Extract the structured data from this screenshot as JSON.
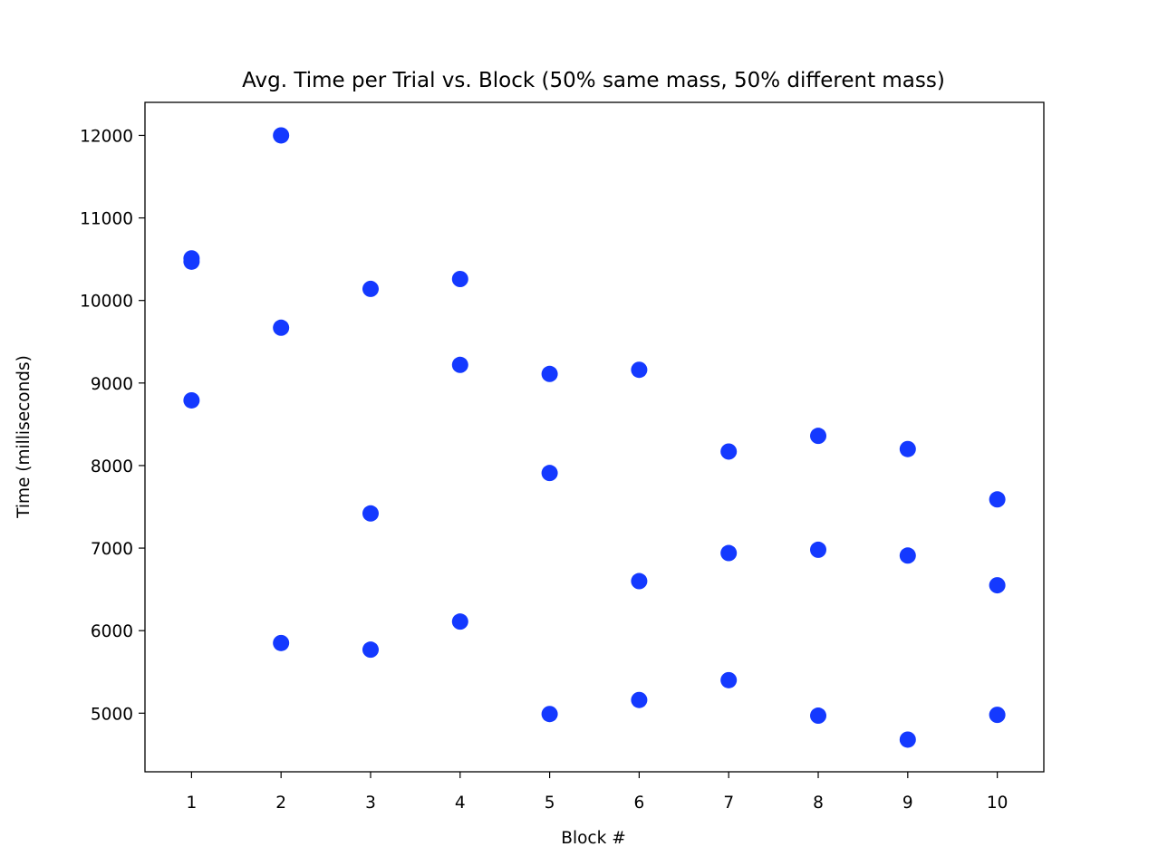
{
  "chart_data": {
    "type": "scatter",
    "title": "Avg. Time per Trial vs. Block (50% same mass, 50% different mass)",
    "xlabel": "Block #",
    "ylabel": "Time (milliseconds)",
    "xlim": [
      0.48,
      10.52
    ],
    "ylim": [
      4290,
      12400
    ],
    "xticks": [
      1,
      2,
      3,
      4,
      5,
      6,
      7,
      8,
      9,
      10
    ],
    "yticks": [
      5000,
      6000,
      7000,
      8000,
      9000,
      10000,
      11000,
      12000
    ],
    "grid": false,
    "marker_color": "#1439ff",
    "series": [
      {
        "points": [
          {
            "x": 1,
            "y": 10510
          },
          {
            "x": 1,
            "y": 10470
          },
          {
            "x": 1,
            "y": 8790
          },
          {
            "x": 2,
            "y": 12000
          },
          {
            "x": 2,
            "y": 9670
          },
          {
            "x": 2,
            "y": 5850
          },
          {
            "x": 3,
            "y": 10140
          },
          {
            "x": 3,
            "y": 7420
          },
          {
            "x": 3,
            "y": 5770
          },
          {
            "x": 4,
            "y": 10260
          },
          {
            "x": 4,
            "y": 9220
          },
          {
            "x": 4,
            "y": 6110
          },
          {
            "x": 5,
            "y": 9110
          },
          {
            "x": 5,
            "y": 7910
          },
          {
            "x": 5,
            "y": 4990
          },
          {
            "x": 6,
            "y": 9160
          },
          {
            "x": 6,
            "y": 6600
          },
          {
            "x": 6,
            "y": 5160
          },
          {
            "x": 7,
            "y": 8170
          },
          {
            "x": 7,
            "y": 6940
          },
          {
            "x": 7,
            "y": 5400
          },
          {
            "x": 8,
            "y": 8360
          },
          {
            "x": 8,
            "y": 6980
          },
          {
            "x": 8,
            "y": 4970
          },
          {
            "x": 9,
            "y": 8200
          },
          {
            "x": 9,
            "y": 6910
          },
          {
            "x": 9,
            "y": 4680
          },
          {
            "x": 10,
            "y": 7590
          },
          {
            "x": 10,
            "y": 6550
          },
          {
            "x": 10,
            "y": 4980
          }
        ]
      }
    ]
  }
}
